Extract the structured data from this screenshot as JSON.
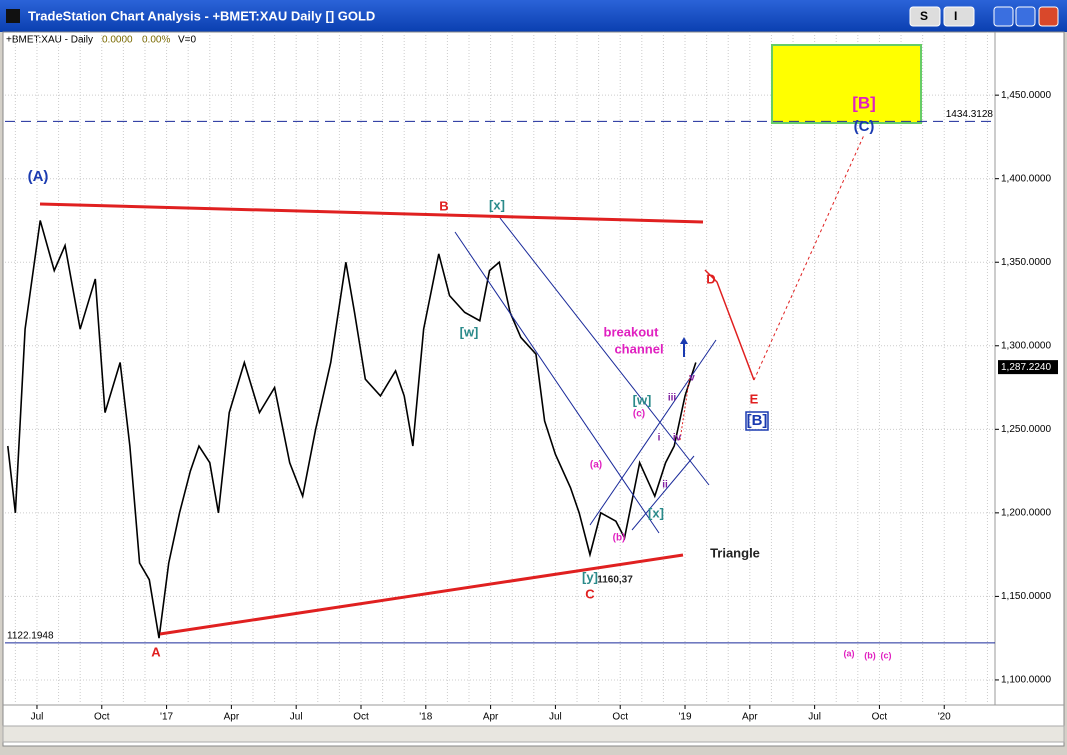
{
  "window_title": "TradeStation Chart Analysis - +BMET:XAU Daily [] GOLD",
  "buttons": [
    "S",
    "I"
  ],
  "chart_data": {
    "type": "line",
    "price_change": "0.0000",
    "pct_change": "0.00%",
    "volume": "V=0",
    "x": [
      -1.35,
      -1.0,
      -0.55,
      0.15,
      0.8,
      1.3,
      2.0,
      2.7,
      3.15,
      3.85,
      4.3,
      4.75,
      5.2,
      5.65,
      6.1,
      6.6,
      7.1,
      7.5,
      8.0,
      8.4,
      8.9,
      9.6,
      10.3,
      11.0,
      11.7,
      12.3,
      12.9,
      13.6,
      14.3,
      14.7,
      15.2,
      15.9,
      16.6,
      17.0,
      17.4,
      17.9,
      18.6,
      19.1,
      19.8,
      20.5,
      20.95,
      21.4,
      21.9,
      22.4,
      23.1,
      23.5,
      24.0,
      24.7,
      25.1,
      25.6,
      26.1,
      26.8,
      27.2,
      27.9,
      28.6,
      29.1,
      29.5,
      30.0,
      30.5
    ],
    "series": [
      {
        "name": "+BMET:XAU - Daily",
        "color": "#000000",
        "values": [
          1240,
          1200,
          1310,
          1375,
          1345,
          1360,
          1310,
          1340,
          1260,
          1290,
          1240,
          1170,
          1160,
          1125,
          1170,
          1200,
          1225,
          1240,
          1230,
          1200,
          1260,
          1290,
          1260,
          1275,
          1230,
          1210,
          1250,
          1290,
          1350,
          1320,
          1280,
          1270,
          1285,
          1270,
          1240,
          1310,
          1355,
          1330,
          1320,
          1315,
          1345,
          1350,
          1320,
          1305,
          1295,
          1255,
          1235,
          1215,
          1200,
          1175,
          1200,
          1195,
          1185,
          1230,
          1210,
          1230,
          1240,
          1270,
          1290
        ]
      }
    ],
    "xlim": [
      -1.48,
      44.35
    ],
    "xticks": [
      {
        "value": 0,
        "label": "Jul"
      },
      {
        "value": 3,
        "label": "Oct"
      },
      {
        "value": 6,
        "label": "'17"
      },
      {
        "value": 9,
        "label": "Apr"
      },
      {
        "value": 12,
        "label": "Jul"
      },
      {
        "value": 15,
        "label": "Oct"
      },
      {
        "value": 18,
        "label": "'18"
      },
      {
        "value": 21,
        "label": "Apr"
      },
      {
        "value": 24,
        "label": "Jul"
      },
      {
        "value": 27,
        "label": "Oct"
      },
      {
        "value": 30,
        "label": "'19"
      },
      {
        "value": 33,
        "label": "Apr"
      },
      {
        "value": 36,
        "label": "Jul"
      },
      {
        "value": 39,
        "label": "Oct"
      },
      {
        "value": 42,
        "label": "'20"
      }
    ],
    "ylim": [
      1085,
      1486
    ],
    "yticks": [
      {
        "value": 1100,
        "label": "1,100.0000"
      },
      {
        "value": 1150,
        "label": "1,150.0000"
      },
      {
        "value": 1200,
        "label": "1,200.0000"
      },
      {
        "value": 1250,
        "label": "1,250.0000"
      },
      {
        "value": 1300,
        "label": "1,300.0000"
      },
      {
        "value": 1350,
        "label": "1,350.0000"
      },
      {
        "value": 1400,
        "label": "1,400.0000"
      },
      {
        "value": 1450,
        "label": "1,450.0000"
      }
    ],
    "grid": true,
    "reference_lines": [
      1434.3128,
      1122.1948
    ],
    "last_price": {
      "value": 1287.224,
      "label": "1,287.2240"
    },
    "annotations": [
      "(A)",
      "B",
      "[x]",
      "[w]",
      "breakout",
      "channel",
      "D",
      "E",
      "[B]",
      "[B]",
      "(C)",
      "[w]",
      "(c)",
      "iii",
      "v",
      "i",
      "iv",
      "ii",
      "(a)",
      "[x]",
      "(b)",
      "Triangle",
      "[y]",
      "1160,37",
      "C",
      "A",
      "(a)",
      "(b)",
      "(c)"
    ]
  }
}
